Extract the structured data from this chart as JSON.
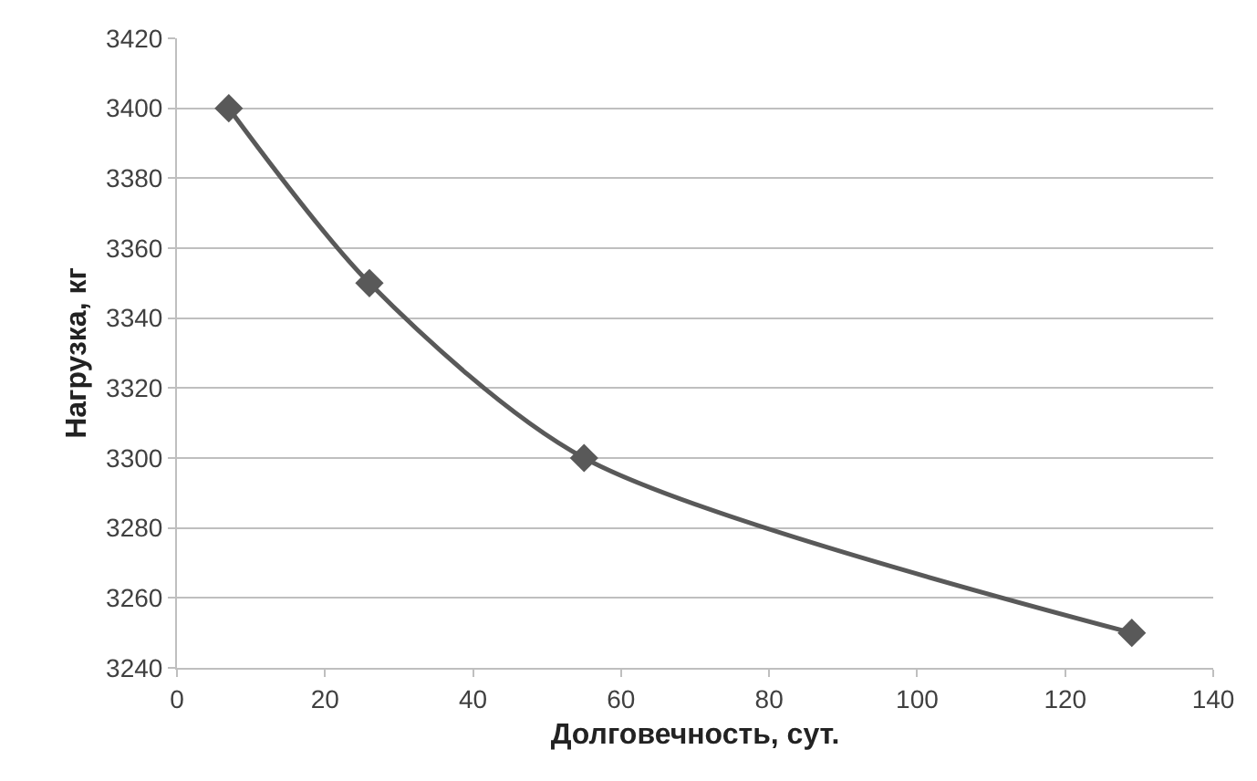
{
  "chart_data": {
    "type": "line",
    "xlabel": "Долговечность, сут.",
    "ylabel": "Нагрузка, кг",
    "x": [
      7,
      26,
      55,
      129
    ],
    "series": [
      {
        "color": "#595959",
        "values": [
          3400,
          3350,
          3300,
          3250
        ]
      }
    ],
    "xlim": [
      0,
      140
    ],
    "xticks": [
      0,
      20,
      40,
      60,
      80,
      100,
      120,
      140
    ],
    "ylim": [
      3240,
      3420
    ],
    "yticks": [
      3240,
      3260,
      3280,
      3300,
      3320,
      3340,
      3360,
      3380,
      3400,
      3420
    ],
    "grid": "y",
    "marker": "diamond",
    "line_style": "solid",
    "legend": false
  }
}
